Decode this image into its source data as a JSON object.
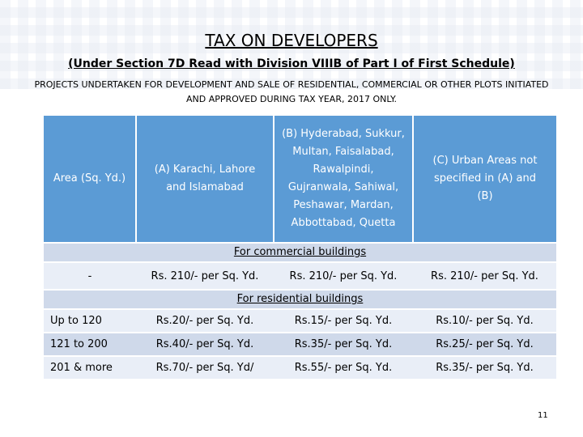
{
  "title": "TAX ON DEVELOPERS",
  "subtitle": "(Under Section 7D Read with Division VIIIB of Part I of First Schedule)",
  "description": "PROJECTS UNDERTAKEN FOR DEVELOPMENT AND SALE OF RESIDENTIAL, COMMERCIAL OR OTHER PLOTS INITIATED AND APPROVED DURING TAX YEAR, 2017 ONLY.",
  "table": {
    "headers": [
      "Area (Sq. Yd.)",
      "(A) Karachi, Lahore and Islamabad",
      "(B) Hyderabad, Sukkur, Multan, Faisalabad, Rawalpindi, Gujranwala, Sahiwal, Peshawar, Mardan, Abbottabad, Quetta",
      "(C) Urban Areas not specified in (A) and (B)"
    ],
    "commercial_label": "For commercial buildings",
    "commercial_row": [
      "-",
      "Rs. 210/- per Sq. Yd.",
      "Rs. 210/- per Sq. Yd.",
      "Rs. 210/- per Sq. Yd."
    ],
    "residential_label": "For residential buildings",
    "residential_rows": [
      [
        "Up to 120",
        "Rs.20/- per Sq. Yd.",
        "Rs.15/- per Sq. Yd.",
        "Rs.10/- per Sq. Yd."
      ],
      [
        "121 to 200",
        "Rs.40/- per Sq. Yd.",
        "Rs.35/- per Sq. Yd.",
        "Rs.25/- per Sq. Yd."
      ],
      [
        "201 & more",
        "Rs.70/- per Sq. Yd/",
        "Rs.55/- per Sq. Yd.",
        "Rs.35/- per Sq. Yd."
      ]
    ]
  },
  "page_number": "11",
  "colors": {
    "header_bg": "#5b9bd5",
    "band_bg": "#cfd9ea",
    "row_light_bg": "#e9eef7"
  }
}
